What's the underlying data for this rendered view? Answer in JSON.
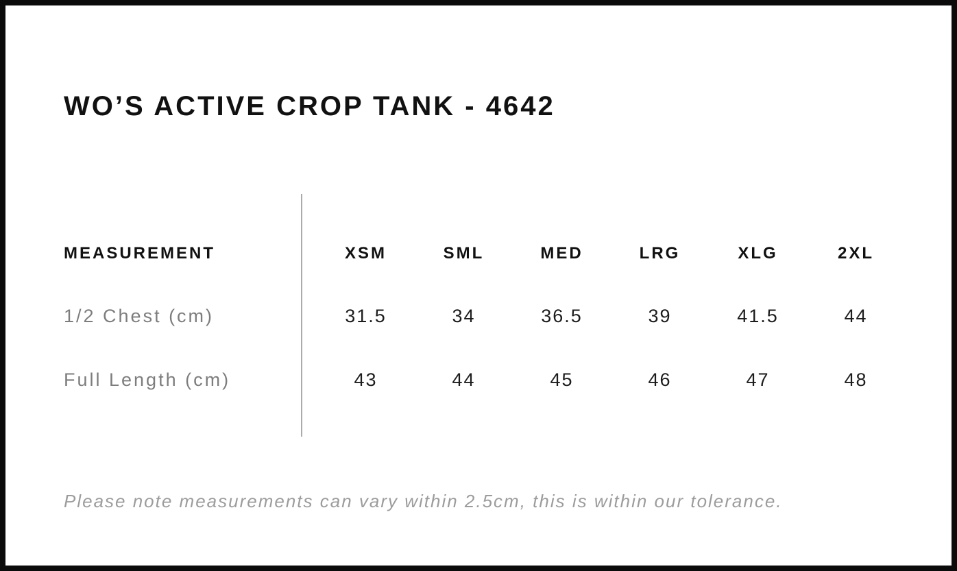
{
  "page": {
    "title": "WO’S ACTIVE CROP TANK - 4642",
    "note": "Please note measurements can vary within 2.5cm, this is within our tolerance."
  },
  "size_chart": {
    "measurement_header": "MEASUREMENT",
    "sizes": [
      "XSM",
      "SML",
      "MED",
      "LRG",
      "XLG",
      "2XL"
    ],
    "rows": [
      {
        "label": "1/2 Chest (cm)",
        "values": [
          "31.5",
          "34",
          "36.5",
          "39",
          "41.5",
          "44"
        ]
      },
      {
        "label": "Full Length (cm)",
        "values": [
          "43",
          "44",
          "45",
          "46",
          "47",
          "48"
        ]
      }
    ]
  },
  "colors": {
    "frame": "#0b0b0b",
    "heading_text": "#111111",
    "value_text": "#1c1c1c",
    "label_text": "#7d7d7d",
    "note_text": "#9c9c9c",
    "divider": "#ababab",
    "background": "#ffffff"
  }
}
